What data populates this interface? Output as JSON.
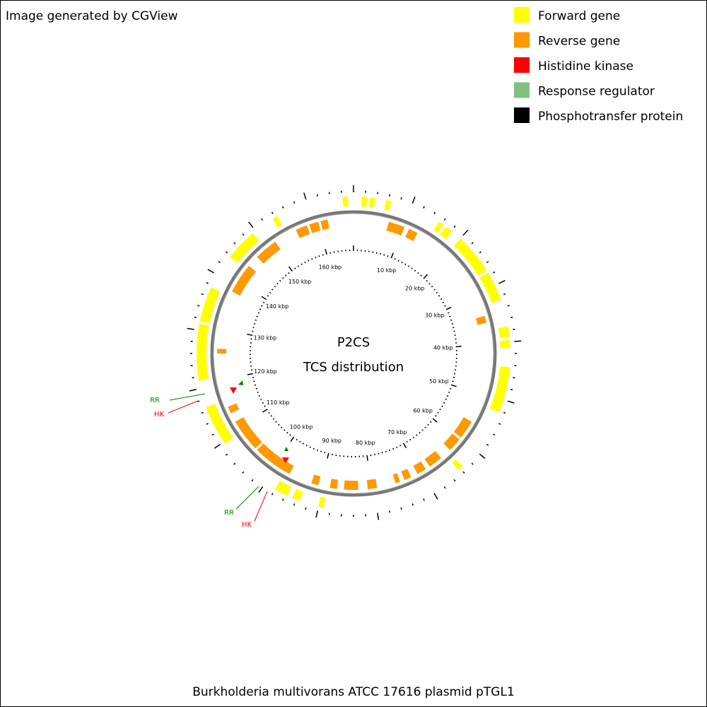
{
  "header": {
    "credit": "Image generated by CGView"
  },
  "legend": [
    {
      "label": "Forward gene",
      "color": "#ffff00"
    },
    {
      "label": "Reverse gene",
      "color": "#ff9900"
    },
    {
      "label": "Histidine kinase",
      "color": "#ff0000"
    },
    {
      "label": "Response regulator",
      "color": "#80c080"
    },
    {
      "label": "Phosphotransfer protein",
      "color": "#000000"
    }
  ],
  "center": {
    "title": "P2CS",
    "subtitle": "TCS distribution"
  },
  "scale": {
    "labels": [
      "10 kbp",
      "20 kbp",
      "30 kbp",
      "40 kbp",
      "50 kbp",
      "60 kbp",
      "70 kbp",
      "80 kbp",
      "90 kbp",
      "100 kbp",
      "110 kbp",
      "120 kbp",
      "130 kbp",
      "140 kbp",
      "150 kbp",
      "160 kbp"
    ]
  },
  "annotations": [
    {
      "label": "RR",
      "color": "#008000"
    },
    {
      "label": "HK",
      "color": "#ff0000"
    },
    {
      "label": "RR",
      "color": "#008000"
    },
    {
      "label": "HK",
      "color": "#ff0000"
    }
  ],
  "footer": "Burkholderia multivorans ATCC 17616 plasmid pTGL1"
}
